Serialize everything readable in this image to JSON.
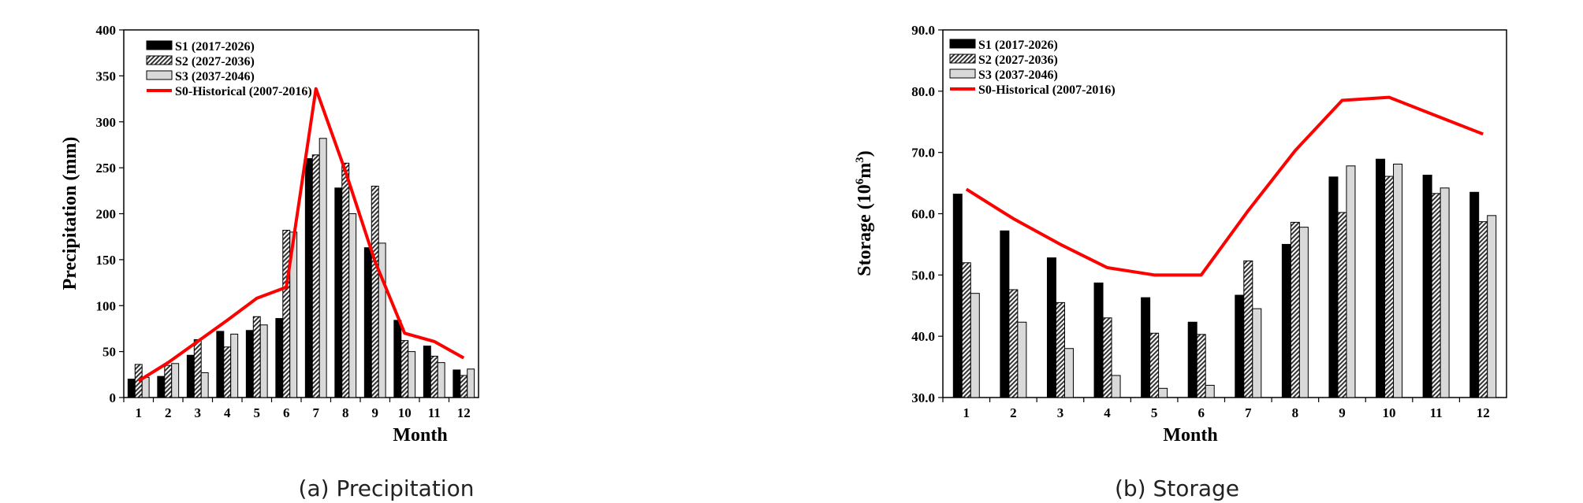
{
  "chart_data": [
    {
      "type": "bar",
      "panel": "a",
      "caption": "(a) Precipitation",
      "xlabel": "Month",
      "ylabel": "Precipitation  (mm)",
      "categories": [
        "1",
        "2",
        "3",
        "4",
        "5",
        "6",
        "7",
        "8",
        "9",
        "10",
        "11",
        "12"
      ],
      "ylim": [
        0,
        400
      ],
      "yticks": [
        0,
        50,
        100,
        150,
        200,
        250,
        300,
        350,
        400
      ],
      "ytick_labels": [
        "0",
        "50",
        "100",
        "150",
        "200",
        "250",
        "300",
        "350",
        "400"
      ],
      "series": [
        {
          "name": "S1 (2017-2026)",
          "kind": "bar",
          "fill": "#000000",
          "values": [
            20,
            23,
            46,
            72,
            73,
            86,
            260,
            228,
            163,
            84,
            56,
            30
          ]
        },
        {
          "name": "S2 (2027-2036)",
          "kind": "bar",
          "fill": "hatch",
          "values": [
            36,
            35,
            63,
            55,
            88,
            182,
            264,
            255,
            230,
            62,
            45,
            24
          ]
        },
        {
          "name": "S3 (2037-2046)",
          "kind": "bar",
          "fill": "#d9d9d9",
          "values": [
            22,
            37,
            27,
            69,
            79,
            180,
            282,
            200,
            168,
            50,
            38,
            31
          ]
        },
        {
          "name": "S0-Historical (2007-2016)",
          "kind": "line",
          "color": "#ff0000",
          "values": [
            18,
            38,
            61,
            84,
            108,
            120,
            336,
            246,
            148,
            70,
            61,
            43
          ]
        }
      ]
    },
    {
      "type": "bar",
      "panel": "b",
      "caption": "(b) Storage",
      "xlabel": "Month",
      "ylabel_prefix": "Storage  (10",
      "ylabel_sup1": "6",
      "ylabel_mid": "m",
      "ylabel_sup2": "3",
      "ylabel_suffix": ")",
      "categories": [
        "1",
        "2",
        "3",
        "4",
        "5",
        "6",
        "7",
        "8",
        "9",
        "10",
        "11",
        "12"
      ],
      "ylim": [
        30,
        90
      ],
      "yticks": [
        30,
        40,
        50,
        60,
        70,
        80,
        90
      ],
      "ytick_labels": [
        "30.0",
        "40.0",
        "50.0",
        "60.0",
        "70.0",
        "80.0",
        "90.0"
      ],
      "series": [
        {
          "name": "S1 (2017-2026)",
          "kind": "bar",
          "fill": "#000000",
          "values": [
            63.2,
            57.2,
            52.8,
            48.7,
            46.3,
            42.3,
            46.7,
            55.0,
            66.0,
            68.9,
            66.3,
            63.5
          ]
        },
        {
          "name": "S2 (2027-2036)",
          "kind": "bar",
          "fill": "hatch",
          "values": [
            52.0,
            47.6,
            45.5,
            43.0,
            40.5,
            40.3,
            52.3,
            58.6,
            60.2,
            66.1,
            63.3,
            58.7
          ]
        },
        {
          "name": "S3 (2037-2046)",
          "kind": "bar",
          "fill": "#d9d9d9",
          "values": [
            47.0,
            42.3,
            38.0,
            33.6,
            31.5,
            32.0,
            44.5,
            57.8,
            67.8,
            68.1,
            64.2,
            59.7
          ]
        },
        {
          "name": "S0-Historical (2007-2016)",
          "kind": "line",
          "color": "#ff0000",
          "values": [
            64.0,
            59.2,
            55.0,
            51.2,
            50.0,
            50.0,
            60.5,
            70.3,
            78.5,
            79.0,
            76.0,
            73.0
          ]
        }
      ]
    }
  ]
}
